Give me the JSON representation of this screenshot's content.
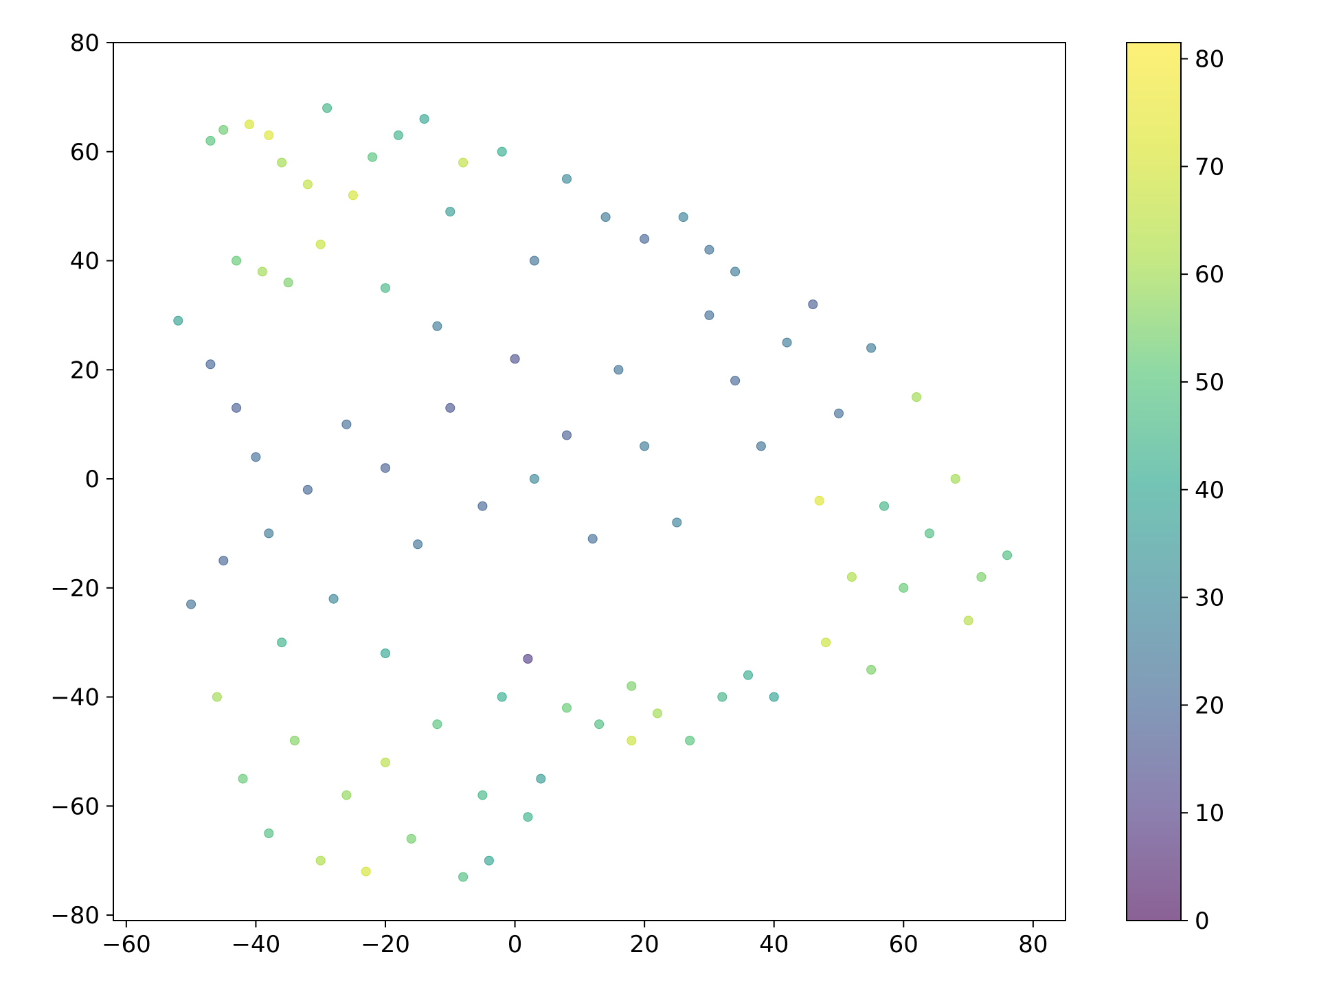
{
  "chart_data": {
    "type": "scatter",
    "title": "",
    "xlabel": "",
    "ylabel": "",
    "xlim": [
      -62,
      85
    ],
    "ylim": [
      -81,
      80
    ],
    "x_ticks": [
      "−60",
      "−40",
      "−20",
      "0",
      "20",
      "40",
      "60",
      "80"
    ],
    "x_tick_values": [
      -60,
      -40,
      -20,
      0,
      20,
      40,
      60,
      80
    ],
    "y_ticks": [
      "−80",
      "−60",
      "−40",
      "−20",
      "0",
      "20",
      "40",
      "60",
      "80"
    ],
    "y_tick_values": [
      -80,
      -60,
      -40,
      -20,
      0,
      20,
      40,
      60,
      80
    ],
    "grid": false,
    "legend": "none",
    "colormap": "viridis",
    "point_alpha": 0.6,
    "colorbar": {
      "range": [
        0,
        81.5
      ],
      "ticks": [
        "0",
        "10",
        "20",
        "30",
        "40",
        "50",
        "60",
        "70",
        "80"
      ],
      "tick_values": [
        0,
        10,
        20,
        30,
        40,
        50,
        60,
        70,
        80
      ],
      "placement": "right"
    },
    "clusters": [
      {
        "region": "top-left",
        "x": [
          -49,
          -6
        ],
        "y": [
          28,
          73
        ],
        "value": [
          36,
          70
        ]
      },
      {
        "region": "upper-center",
        "x": [
          -6,
          38
        ],
        "y": [
          28,
          70
        ],
        "value": [
          16,
          48
        ]
      },
      {
        "region": "center",
        "x": [
          -52,
          55
        ],
        "y": [
          -28,
          28
        ],
        "value": [
          10,
          42
        ]
      },
      {
        "region": "right",
        "x": [
          44,
          78
        ],
        "y": [
          -44,
          17
        ],
        "value": [
          38,
          72
        ]
      },
      {
        "region": "bottom-middle",
        "x": [
          5,
          42
        ],
        "y": [
          -55,
          -28
        ],
        "value": [
          35,
          66
        ]
      },
      {
        "region": "bottom-left",
        "x": [
          -49,
          -3
        ],
        "y": [
          -74,
          -28
        ],
        "value": [
          36,
          70
        ]
      }
    ],
    "points_estimated": [
      [
        -47,
        62,
        50
      ],
      [
        -45,
        64,
        53
      ],
      [
        -41,
        65,
        71
      ],
      [
        -38,
        63,
        72
      ],
      [
        -36,
        58,
        60
      ],
      [
        -32,
        54,
        66
      ],
      [
        -29,
        68,
        45
      ],
      [
        -25,
        52,
        70
      ],
      [
        -22,
        59,
        50
      ],
      [
        -18,
        63,
        44
      ],
      [
        -14,
        66,
        40
      ],
      [
        -10,
        49,
        37
      ],
      [
        -8,
        58,
        65
      ],
      [
        -43,
        40,
        52
      ],
      [
        -39,
        38,
        60
      ],
      [
        -35,
        36,
        55
      ],
      [
        -30,
        43,
        67
      ],
      [
        -20,
        35,
        46
      ],
      [
        -52,
        29,
        38
      ],
      [
        -47,
        21,
        20
      ],
      [
        -43,
        13,
        18
      ],
      [
        -40,
        4,
        22
      ],
      [
        -38,
        -10,
        26
      ],
      [
        -45,
        -15,
        20
      ],
      [
        -50,
        -23,
        24
      ],
      [
        -32,
        -2,
        20
      ],
      [
        -26,
        10,
        22
      ],
      [
        -20,
        2,
        18
      ],
      [
        -15,
        -12,
        24
      ],
      [
        -10,
        13,
        16
      ],
      [
        -5,
        -5,
        20
      ],
      [
        0,
        22,
        14
      ],
      [
        3,
        0,
        30
      ],
      [
        8,
        8,
        18
      ],
      [
        12,
        -11,
        22
      ],
      [
        16,
        20,
        24
      ],
      [
        20,
        6,
        26
      ],
      [
        25,
        -8,
        28
      ],
      [
        30,
        30,
        22
      ],
      [
        34,
        18,
        20
      ],
      [
        38,
        6,
        24
      ],
      [
        42,
        25,
        26
      ],
      [
        46,
        32,
        18
      ],
      [
        50,
        12,
        22
      ],
      [
        55,
        24,
        26
      ],
      [
        3,
        40,
        24
      ],
      [
        8,
        55,
        30
      ],
      [
        14,
        48,
        26
      ],
      [
        20,
        44,
        20
      ],
      [
        26,
        48,
        28
      ],
      [
        30,
        42,
        24
      ],
      [
        34,
        38,
        26
      ],
      [
        -2,
        60,
        42
      ],
      [
        -12,
        28,
        26
      ],
      [
        57,
        -5,
        45
      ],
      [
        60,
        -20,
        52
      ],
      [
        64,
        -10,
        48
      ],
      [
        68,
        0,
        60
      ],
      [
        72,
        -18,
        55
      ],
      [
        76,
        -14,
        48
      ],
      [
        48,
        -30,
        68
      ],
      [
        52,
        -18,
        62
      ],
      [
        47,
        -4,
        72
      ],
      [
        62,
        15,
        60
      ],
      [
        70,
        -26,
        64
      ],
      [
        55,
        -35,
        55
      ],
      [
        8,
        -42,
        52
      ],
      [
        13,
        -45,
        48
      ],
      [
        18,
        -38,
        55
      ],
      [
        22,
        -43,
        60
      ],
      [
        27,
        -48,
        50
      ],
      [
        32,
        -40,
        45
      ],
      [
        36,
        -36,
        42
      ],
      [
        40,
        -40,
        38
      ],
      [
        18,
        -48,
        68
      ],
      [
        -46,
        -40,
        60
      ],
      [
        -42,
        -55,
        52
      ],
      [
        -38,
        -65,
        48
      ],
      [
        -34,
        -48,
        56
      ],
      [
        -30,
        -70,
        62
      ],
      [
        -26,
        -58,
        58
      ],
      [
        -23,
        -72,
        70
      ],
      [
        -20,
        -52,
        64
      ],
      [
        -16,
        -66,
        54
      ],
      [
        -12,
        -45,
        50
      ],
      [
        -8,
        -73,
        48
      ],
      [
        -5,
        -58,
        46
      ],
      [
        -4,
        -70,
        40
      ],
      [
        2,
        -62,
        44
      ],
      [
        -2,
        -40,
        42
      ],
      [
        4,
        -55,
        36
      ],
      [
        2,
        -33,
        10
      ],
      [
        -20,
        -32,
        40
      ],
      [
        -36,
        -30,
        44
      ],
      [
        -28,
        -22,
        30
      ]
    ]
  }
}
